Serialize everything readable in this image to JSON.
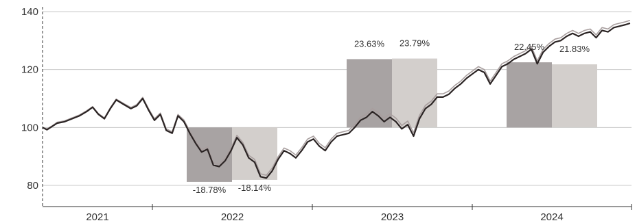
{
  "chart_data": {
    "type": "line",
    "title": "",
    "xlabel": "",
    "ylabel": "",
    "ylim": [
      75,
      142
    ],
    "y_ticks": [
      80,
      100,
      120,
      140
    ],
    "grid": "horizontal",
    "x_categories": [
      "2021",
      "2022",
      "2023",
      "2024"
    ],
    "colors": {
      "line_dark": "#2b2424",
      "line_light": "#a89e9e",
      "bar_dark": "#a8a3a3",
      "bar_light": "#d3cfcc",
      "grid": "#c8c8c8",
      "axis": "#333333",
      "text": "#333333"
    },
    "bars": [
      {
        "year": "2022",
        "label": "-18.78%",
        "value": -18.78,
        "top": 100,
        "bottom": 81.2,
        "shade": "dark"
      },
      {
        "year": "2022",
        "label": "-18.14%",
        "value": -18.14,
        "top": 100,
        "bottom": 81.9,
        "shade": "light"
      },
      {
        "year": "2023",
        "label": "23.63%",
        "value": 23.63,
        "top": 123.6,
        "bottom": 100,
        "shade": "dark"
      },
      {
        "year": "2023",
        "label": "23.79%",
        "value": 23.79,
        "top": 123.8,
        "bottom": 100,
        "shade": "light"
      },
      {
        "year": "2024",
        "label": "22.45%",
        "value": 22.45,
        "top": 122.5,
        "bottom": 100,
        "shade": "dark"
      },
      {
        "year": "2024",
        "label": "21.83%",
        "value": 21.83,
        "top": 121.8,
        "bottom": 100,
        "shade": "light"
      }
    ],
    "series": [
      {
        "t": [
          2021.0,
          2021.03,
          2021.06,
          2021.1,
          2021.15,
          2021.2,
          2021.25,
          2021.3,
          2021.34,
          2021.38,
          2021.42,
          2021.46,
          2021.5,
          2021.55,
          2021.6,
          2021.64,
          2021.68,
          2021.72,
          2021.76,
          2021.8,
          2021.84,
          2021.88,
          2021.92,
          2021.96,
          2022.0,
          2022.04,
          2022.08,
          2022.12,
          2022.16,
          2022.2,
          2022.24,
          2022.28,
          2022.32,
          2022.36,
          2022.4,
          2022.44,
          2022.48,
          2022.52,
          2022.56,
          2022.6,
          2022.64,
          2022.68,
          2022.72,
          2022.76,
          2022.8,
          2022.84,
          2022.88,
          2022.92,
          2022.96,
          2023.0,
          2023.04,
          2023.08,
          2023.12,
          2023.16,
          2023.2,
          2023.24,
          2023.28,
          2023.32,
          2023.36,
          2023.4,
          2023.44,
          2023.48,
          2023.52,
          2023.56,
          2023.6,
          2023.64,
          2023.68,
          2023.72,
          2023.76,
          2023.8,
          2023.84,
          2023.88,
          2023.92,
          2023.96,
          2024.0,
          2024.04,
          2024.08,
          2024.12,
          2024.16,
          2024.2,
          2024.24,
          2024.28,
          2024.32,
          2024.36,
          2024.4,
          2024.44,
          2024.48,
          2024.52,
          2024.56,
          2024.6,
          2024.64,
          2024.68,
          2024.72,
          2024.76,
          2024.8,
          2024.84,
          2024.88,
          2024.92,
          2024.96,
          2024.99
        ],
        "values": [
          100.0,
          99.2,
          100.2,
          101.5,
          102.0,
          103.0,
          104.0,
          105.5,
          107.0,
          104.5,
          103.0,
          106.5,
          109.5,
          108.0,
          106.5,
          107.5,
          110.0,
          106.0,
          102.5,
          104.5,
          99.0,
          98.0,
          104.0,
          102.0,
          98.0,
          94.5,
          91.5,
          92.5,
          87.0,
          86.5,
          88.5,
          92.0,
          96.5,
          94.0,
          89.5,
          88.0,
          83.0,
          82.5,
          85.0,
          89.0,
          92.0,
          91.0,
          89.5,
          92.0,
          95.0,
          96.0,
          93.5,
          92.0,
          95.0,
          97.0,
          97.5,
          98.0,
          100.0,
          102.5,
          103.5,
          105.5,
          104.0,
          102.0,
          103.5,
          102.0,
          99.5,
          101.0,
          97.0,
          103.0,
          106.5,
          108.0,
          110.5,
          110.5,
          111.5,
          113.5,
          115.0,
          117.0,
          118.5,
          120.0,
          119.0,
          115.0,
          118.0,
          121.0,
          122.0,
          123.5,
          124.5,
          125.5,
          127.0,
          122.0,
          126.0,
          128.0,
          129.5,
          130.0,
          131.5,
          132.5,
          131.5,
          132.5,
          133.0,
          131.0,
          133.5,
          133.0,
          134.5,
          135.0,
          135.5,
          136.0
        ]
      },
      {
        "t": [
          2021.0,
          2021.03,
          2021.06,
          2021.1,
          2021.15,
          2021.2,
          2021.25,
          2021.3,
          2021.34,
          2021.38,
          2021.42,
          2021.46,
          2021.5,
          2021.55,
          2021.6,
          2021.64,
          2021.68,
          2021.72,
          2021.76,
          2021.8,
          2021.84,
          2021.88,
          2021.92,
          2021.96,
          2022.0,
          2022.04,
          2022.08,
          2022.12,
          2022.16,
          2022.2,
          2022.24,
          2022.28,
          2022.32,
          2022.36,
          2022.4,
          2022.44,
          2022.48,
          2022.52,
          2022.56,
          2022.6,
          2022.64,
          2022.68,
          2022.72,
          2022.76,
          2022.8,
          2022.84,
          2022.88,
          2022.92,
          2022.96,
          2023.0,
          2023.04,
          2023.08,
          2023.12,
          2023.16,
          2023.2,
          2023.24,
          2023.28,
          2023.32,
          2023.36,
          2023.4,
          2023.44,
          2023.48,
          2023.52,
          2023.56,
          2023.6,
          2023.64,
          2023.68,
          2023.72,
          2023.76,
          2023.8,
          2023.84,
          2023.88,
          2023.92,
          2023.96,
          2024.0,
          2024.04,
          2024.08,
          2024.12,
          2024.16,
          2024.2,
          2024.24,
          2024.28,
          2024.32,
          2024.36,
          2024.4,
          2024.44,
          2024.48,
          2024.52,
          2024.56,
          2024.6,
          2024.64,
          2024.68,
          2024.72,
          2024.76,
          2024.8,
          2024.84,
          2024.88,
          2024.92,
          2024.96,
          2024.99
        ],
        "values": [
          100.0,
          99.5,
          100.4,
          101.8,
          102.3,
          103.3,
          104.3,
          105.8,
          107.2,
          104.8,
          103.3,
          106.8,
          109.8,
          108.3,
          106.9,
          107.9,
          110.4,
          106.5,
          103.0,
          105.0,
          99.5,
          98.5,
          104.5,
          102.6,
          98.7,
          95.3,
          92.3,
          93.3,
          87.8,
          87.4,
          89.4,
          92.9,
          97.3,
          94.8,
          90.4,
          89.0,
          84.0,
          83.5,
          86.0,
          89.9,
          92.9,
          92.0,
          90.5,
          93.0,
          96.0,
          97.0,
          94.5,
          93.0,
          96.0,
          98.0,
          98.5,
          99.0,
          101.0,
          103.6,
          104.6,
          106.6,
          105.2,
          103.2,
          104.7,
          103.2,
          100.7,
          102.2,
          98.2,
          104.2,
          107.6,
          109.1,
          111.6,
          111.6,
          112.6,
          114.5,
          116.0,
          118.0,
          119.5,
          121.0,
          120.0,
          116.0,
          119.0,
          122.0,
          123.0,
          124.5,
          125.5,
          126.5,
          128.0,
          123.0,
          127.0,
          129.0,
          130.5,
          131.0,
          132.5,
          133.5,
          132.5,
          133.5,
          134.0,
          132.0,
          134.5,
          134.0,
          135.5,
          136.0,
          136.5,
          137.0
        ]
      }
    ]
  }
}
